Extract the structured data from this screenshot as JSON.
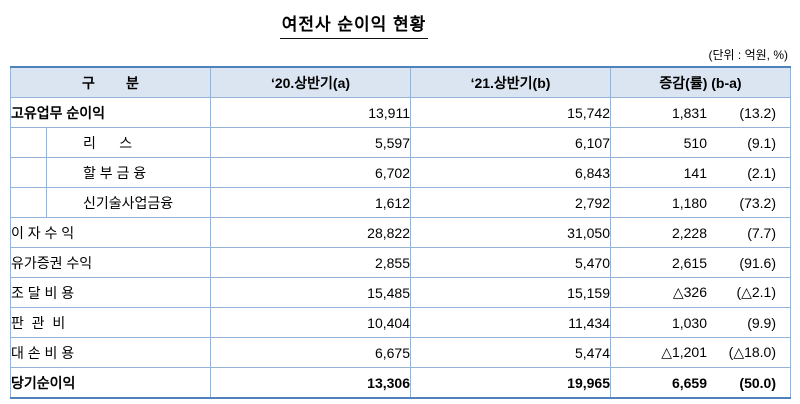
{
  "title": "여전사 순이익 현황",
  "unit_note": "(단위 : 억원, %)",
  "table": {
    "headers": [
      "구        분",
      "‘20.상반기(a)",
      "‘21.상반기(b)",
      "증감(률) (b-a)"
    ],
    "rows": [
      {
        "label": "고유업무 순이익",
        "label_bold": true,
        "a": "13,911",
        "b": "15,742",
        "diff": "1,831",
        "rate": "(13.2)"
      },
      {
        "label": "리      스",
        "indent": true,
        "a": "5,597",
        "b": "6,107",
        "diff": "510",
        "rate": "(9.1)"
      },
      {
        "label": "할 부 금 융",
        "indent": true,
        "a": "6,702",
        "b": "6,843",
        "diff": "141",
        "rate": "(2.1)"
      },
      {
        "label": "신기술사업금융",
        "indent": true,
        "a": "1,612",
        "b": "2,792",
        "diff": "1,180",
        "rate": "(73.2)"
      },
      {
        "label": "이 자 수 익",
        "a": "28,822",
        "b": "31,050",
        "diff": "2,228",
        "rate": "(7.7)"
      },
      {
        "label": "유가증권 수익",
        "a": "2,855",
        "b": "5,470",
        "diff": "2,615",
        "rate": "(91.6)"
      },
      {
        "label": "조 달 비 용",
        "a": "15,485",
        "b": "15,159",
        "diff": "△326",
        "rate": "(△2.1)"
      },
      {
        "label": "판  관  비",
        "a": "10,404",
        "b": "11,434",
        "diff": "1,030",
        "rate": "(9.9)"
      },
      {
        "label": "대 손 비 용",
        "a": "6,675",
        "b": "5,474",
        "diff": "△1,201",
        "rate": "(△18.0)"
      },
      {
        "label": "당기순이익",
        "row_bold": true,
        "a": "13,306",
        "b": "19,965",
        "diff": "6,659",
        "rate": "(50.0)"
      }
    ]
  }
}
